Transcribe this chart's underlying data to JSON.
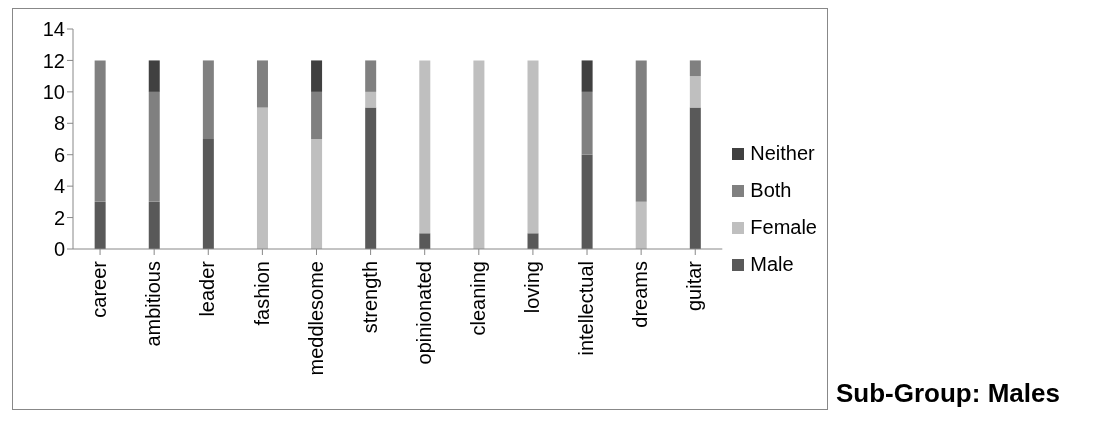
{
  "chart_data": {
    "type": "bar",
    "stacked": true,
    "categories": [
      "career",
      "ambitious",
      "leader",
      "fashion",
      "meddlesome",
      "strength",
      "opinionated",
      "cleaning",
      "loving",
      "intellectual",
      "dreams",
      "guitar"
    ],
    "series": [
      {
        "name": "Male",
        "color": "#595959",
        "values": [
          3,
          3,
          7,
          0,
          0,
          9,
          1,
          0,
          1,
          6,
          0,
          9
        ]
      },
      {
        "name": "Female",
        "color": "#bfbfbf",
        "values": [
          0,
          0,
          0,
          9,
          7,
          1,
          11,
          12,
          11,
          0,
          3,
          2
        ]
      },
      {
        "name": "Both",
        "color": "#808080",
        "values": [
          9,
          7,
          5,
          3,
          3,
          2,
          0,
          0,
          0,
          4,
          9,
          1
        ]
      },
      {
        "name": "Neither",
        "color": "#404040",
        "values": [
          0,
          2,
          0,
          0,
          2,
          0,
          0,
          0,
          0,
          2,
          0,
          0
        ]
      }
    ],
    "ylim": [
      0,
      14
    ],
    "yticks": [
      0,
      2,
      4,
      6,
      8,
      10,
      12,
      14
    ],
    "legend": "right",
    "annotations": [
      "Sub-Group: Males"
    ]
  }
}
